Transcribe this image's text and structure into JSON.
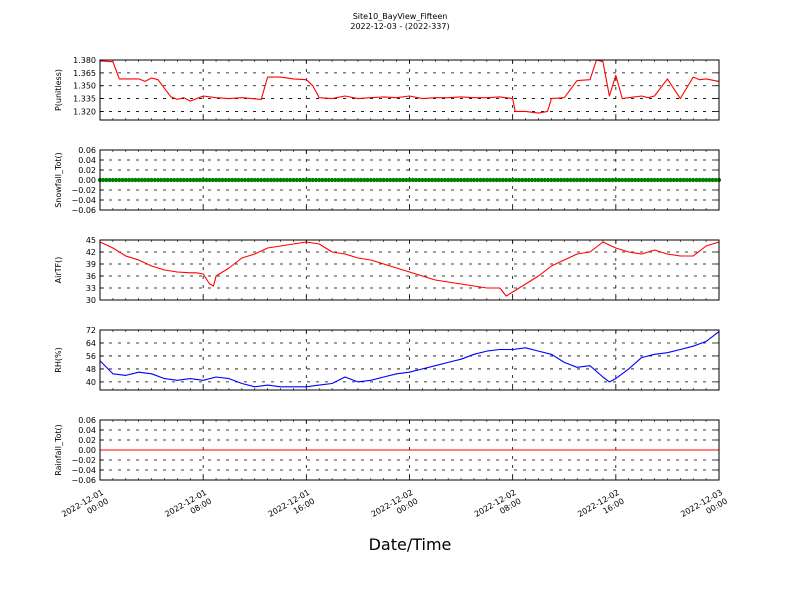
{
  "figure": {
    "title_line1": "Site10_BayView_Fifteen",
    "title_line2": "2022-12-03 - (2022-337)",
    "xlabel": "Date/Time",
    "x_ticks": [
      {
        "line1": "2022-12-01",
        "line2": "00:00"
      },
      {
        "line1": "2022-12-01",
        "line2": "08:00"
      },
      {
        "line1": "2022-12-01",
        "line2": "16:00"
      },
      {
        "line1": "2022-12-02",
        "line2": "00:00"
      },
      {
        "line1": "2022-12-02",
        "line2": "08:00"
      },
      {
        "line1": "2022-12-02",
        "line2": "16:00"
      },
      {
        "line1": "2022-12-03",
        "line2": "00:00"
      }
    ]
  },
  "chart_data": [
    {
      "type": "line",
      "ylabel": "P(unitless)",
      "ylim": [
        1.31,
        1.38
      ],
      "yticks": [
        1.32,
        1.335,
        1.35,
        1.365,
        1.38
      ],
      "ytick_labels": [
        "1.320",
        "1.335",
        "1.350",
        "1.365",
        "1.380"
      ],
      "xlim": [
        "2022-12-01 00:00",
        "2022-12-03 00:00"
      ],
      "grid": true,
      "color": "#ff0000",
      "x_hours": [
        0,
        1,
        1.5,
        3,
        3.5,
        4,
        4.5,
        5.5,
        6,
        6.5,
        7,
        8,
        9,
        10,
        11,
        12.5,
        13,
        14,
        15,
        16,
        16.5,
        17,
        18,
        19,
        20,
        21,
        22,
        23,
        24,
        25,
        26,
        27,
        28,
        29,
        30,
        31,
        32,
        32.2,
        33,
        34,
        34.7,
        35,
        36,
        37,
        38,
        38.5,
        39,
        39.5,
        40,
        40.5,
        41,
        42,
        42.5,
        43,
        44,
        45,
        46,
        46.5,
        47,
        48
      ],
      "y": [
        1.379,
        1.378,
        1.358,
        1.358,
        1.355,
        1.359,
        1.357,
        1.337,
        1.334,
        1.336,
        1.332,
        1.338,
        1.336,
        1.335,
        1.336,
        1.334,
        1.36,
        1.36,
        1.358,
        1.357,
        1.35,
        1.336,
        1.335,
        1.338,
        1.335,
        1.336,
        1.337,
        1.336,
        1.338,
        1.335,
        1.336,
        1.336,
        1.337,
        1.336,
        1.336,
        1.337,
        1.335,
        1.32,
        1.32,
        1.318,
        1.32,
        1.335,
        1.336,
        1.356,
        1.357,
        1.38,
        1.378,
        1.338,
        1.362,
        1.335,
        1.336,
        1.338,
        1.336,
        1.338,
        1.358,
        1.335,
        1.36,
        1.357,
        1.358,
        1.355
      ]
    },
    {
      "type": "scatter",
      "ylabel": "Snowfall_Tot()",
      "ylim": [
        -0.06,
        0.06
      ],
      "yticks": [
        -0.06,
        -0.04,
        -0.02,
        0.0,
        0.02,
        0.04,
        0.06
      ],
      "ytick_labels": [
        "−0.06",
        "−0.04",
        "−0.02",
        "0.00",
        "0.02",
        "0.04",
        "0.06"
      ],
      "xlim": [
        "2022-12-01 00:00",
        "2022-12-03 00:00"
      ],
      "grid": true,
      "color": "#008000",
      "x_hours": [
        0,
        48
      ],
      "y": [
        0.0,
        0.0
      ],
      "interval_minutes": 15
    },
    {
      "type": "line",
      "ylabel": "AirTF()",
      "ylim": [
        30,
        45
      ],
      "yticks": [
        30,
        33,
        36,
        39,
        42,
        45
      ],
      "ytick_labels": [
        "30",
        "33",
        "36",
        "39",
        "42",
        "45"
      ],
      "xlim": [
        "2022-12-01 00:00",
        "2022-12-03 00:00"
      ],
      "grid": true,
      "color": "#ff0000",
      "x_hours": [
        0,
        1,
        2,
        3,
        4,
        5,
        6,
        7,
        7.5,
        8,
        8.5,
        8.8,
        9,
        9.5,
        10,
        11,
        12,
        13,
        14,
        15,
        16,
        17,
        18,
        19,
        20,
        21,
        22,
        23,
        24,
        25,
        26,
        27,
        28,
        29,
        30,
        31,
        31.5,
        32,
        33,
        34,
        35,
        36,
        37,
        38,
        39,
        40,
        40.5,
        41,
        42,
        43,
        44,
        45,
        46,
        47,
        48
      ],
      "y": [
        44.5,
        43,
        41,
        40,
        38.5,
        37.5,
        37,
        36.8,
        36.8,
        36.5,
        34,
        33.5,
        36,
        37,
        38,
        40.5,
        41.5,
        43,
        43.5,
        44,
        44.5,
        44,
        42,
        41.5,
        40.5,
        40,
        39,
        38,
        37,
        36,
        35,
        34.5,
        34,
        33.5,
        33,
        33,
        31,
        32,
        34,
        36,
        38.5,
        40,
        41.5,
        42,
        44.5,
        43,
        42.5,
        42,
        41.5,
        42.5,
        41.5,
        41,
        41,
        43.5,
        44.5
      ]
    },
    {
      "type": "line",
      "ylabel": "RH(%)",
      "ylim": [
        35,
        72
      ],
      "yticks": [
        40,
        48,
        56,
        64,
        72
      ],
      "ytick_labels": [
        "40",
        "48",
        "56",
        "64",
        "72"
      ],
      "xlim": [
        "2022-12-01 00:00",
        "2022-12-03 00:00"
      ],
      "grid": true,
      "color": "#0000ff",
      "x_hours": [
        0,
        1,
        2,
        3,
        4,
        5,
        6,
        7,
        8,
        9,
        10,
        11,
        12,
        13,
        14,
        15,
        16,
        17,
        18,
        19,
        20,
        21,
        22,
        23,
        24,
        25,
        26,
        27,
        28,
        29,
        30,
        31,
        32,
        33,
        34,
        35,
        36,
        37,
        38,
        39,
        39.5,
        40,
        41,
        42,
        43,
        44,
        45,
        46,
        47,
        48
      ],
      "y": [
        53,
        45,
        44,
        46,
        45,
        42,
        41,
        42,
        41,
        43,
        42,
        39,
        37,
        38,
        37,
        37,
        37,
        38,
        39,
        43,
        40,
        41,
        43,
        45,
        46,
        48,
        50,
        52,
        54,
        57,
        59,
        60,
        60,
        61,
        59,
        57,
        52,
        49,
        50,
        43,
        40,
        42,
        48,
        55,
        57,
        58,
        60,
        62,
        65,
        71
      ]
    },
    {
      "type": "line",
      "ylabel": "Rainfall_Tot()",
      "ylim": [
        -0.06,
        0.06
      ],
      "yticks": [
        -0.06,
        -0.04,
        -0.02,
        0.0,
        0.02,
        0.04,
        0.06
      ],
      "ytick_labels": [
        "−0.06",
        "−0.04",
        "−0.02",
        "0.00",
        "0.02",
        "0.04",
        "0.06"
      ],
      "xlim": [
        "2022-12-01 00:00",
        "2022-12-03 00:00"
      ],
      "grid": true,
      "color": "#ff0000",
      "x_hours": [
        0,
        48
      ],
      "y": [
        0.0,
        0.0
      ]
    }
  ]
}
